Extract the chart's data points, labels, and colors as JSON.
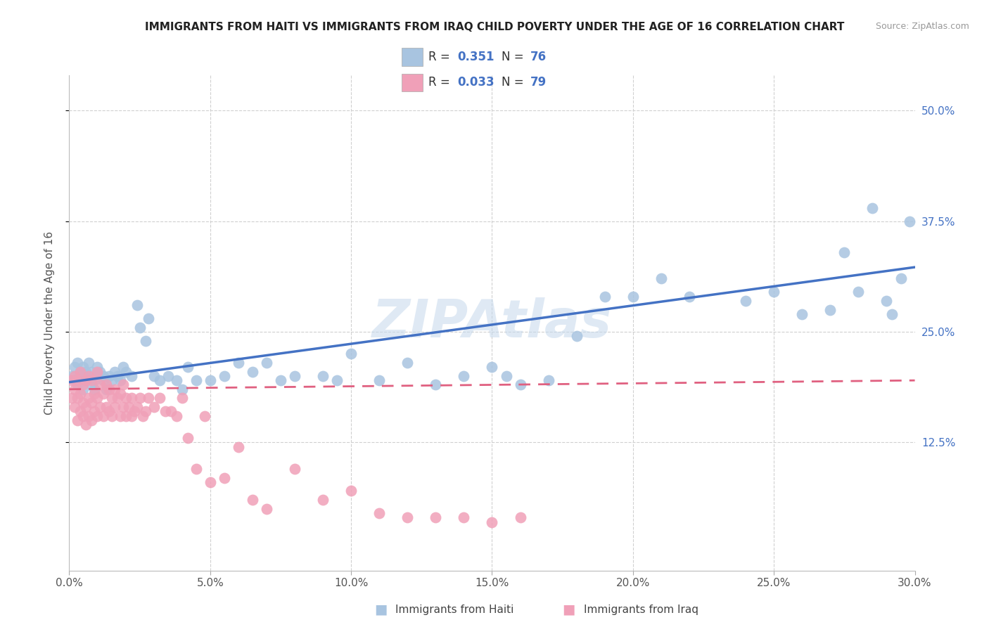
{
  "title": "IMMIGRANTS FROM HAITI VS IMMIGRANTS FROM IRAQ CHILD POVERTY UNDER THE AGE OF 16 CORRELATION CHART",
  "source": "Source: ZipAtlas.com",
  "ylabel": "Child Poverty Under the Age of 16",
  "xlim": [
    0.0,
    0.3
  ],
  "ylim": [
    -0.02,
    0.54
  ],
  "legend1_label": "Immigrants from Haiti",
  "legend2_label": "Immigrants from Iraq",
  "R_haiti": 0.351,
  "N_haiti": 76,
  "R_iraq": 0.033,
  "N_iraq": 79,
  "color_haiti": "#a8c4e0",
  "color_iraq": "#f0a0b8",
  "line_haiti": "#4472c4",
  "line_iraq": "#e06080",
  "watermark": "ZIPAtlas",
  "haiti_x": [
    0.001,
    0.002,
    0.002,
    0.003,
    0.003,
    0.004,
    0.004,
    0.005,
    0.005,
    0.006,
    0.006,
    0.007,
    0.007,
    0.008,
    0.008,
    0.009,
    0.009,
    0.01,
    0.01,
    0.011,
    0.012,
    0.012,
    0.013,
    0.014,
    0.015,
    0.016,
    0.017,
    0.018,
    0.019,
    0.02,
    0.022,
    0.024,
    0.025,
    0.027,
    0.028,
    0.03,
    0.032,
    0.035,
    0.038,
    0.04,
    0.042,
    0.045,
    0.05,
    0.055,
    0.06,
    0.065,
    0.07,
    0.075,
    0.08,
    0.09,
    0.095,
    0.1,
    0.11,
    0.12,
    0.13,
    0.14,
    0.15,
    0.155,
    0.16,
    0.17,
    0.18,
    0.19,
    0.2,
    0.21,
    0.22,
    0.24,
    0.25,
    0.26,
    0.27,
    0.275,
    0.28,
    0.285,
    0.29,
    0.292,
    0.295,
    0.298
  ],
  "haiti_y": [
    0.2,
    0.195,
    0.21,
    0.19,
    0.215,
    0.2,
    0.205,
    0.185,
    0.21,
    0.195,
    0.205,
    0.2,
    0.215,
    0.19,
    0.205,
    0.185,
    0.195,
    0.2,
    0.21,
    0.205,
    0.195,
    0.2,
    0.185,
    0.2,
    0.195,
    0.205,
    0.2,
    0.195,
    0.21,
    0.205,
    0.2,
    0.28,
    0.255,
    0.24,
    0.265,
    0.2,
    0.195,
    0.2,
    0.195,
    0.185,
    0.21,
    0.195,
    0.195,
    0.2,
    0.215,
    0.205,
    0.215,
    0.195,
    0.2,
    0.2,
    0.195,
    0.225,
    0.195,
    0.215,
    0.19,
    0.2,
    0.21,
    0.2,
    0.19,
    0.195,
    0.245,
    0.29,
    0.29,
    0.31,
    0.29,
    0.285,
    0.295,
    0.27,
    0.275,
    0.34,
    0.295,
    0.39,
    0.285,
    0.27,
    0.31,
    0.375
  ],
  "iraq_x": [
    0.001,
    0.001,
    0.002,
    0.002,
    0.002,
    0.003,
    0.003,
    0.003,
    0.004,
    0.004,
    0.004,
    0.005,
    0.005,
    0.005,
    0.006,
    0.006,
    0.006,
    0.007,
    0.007,
    0.007,
    0.008,
    0.008,
    0.008,
    0.009,
    0.009,
    0.01,
    0.01,
    0.01,
    0.011,
    0.011,
    0.012,
    0.012,
    0.013,
    0.013,
    0.014,
    0.014,
    0.015,
    0.015,
    0.016,
    0.016,
    0.017,
    0.018,
    0.018,
    0.019,
    0.019,
    0.02,
    0.02,
    0.021,
    0.022,
    0.022,
    0.023,
    0.024,
    0.025,
    0.026,
    0.027,
    0.028,
    0.03,
    0.032,
    0.034,
    0.036,
    0.038,
    0.04,
    0.042,
    0.045,
    0.048,
    0.05,
    0.055,
    0.06,
    0.065,
    0.07,
    0.08,
    0.09,
    0.1,
    0.11,
    0.12,
    0.13,
    0.14,
    0.15,
    0.16
  ],
  "iraq_y": [
    0.175,
    0.195,
    0.165,
    0.185,
    0.2,
    0.15,
    0.175,
    0.195,
    0.16,
    0.18,
    0.205,
    0.155,
    0.17,
    0.19,
    0.145,
    0.165,
    0.195,
    0.155,
    0.175,
    0.2,
    0.15,
    0.17,
    0.195,
    0.16,
    0.18,
    0.155,
    0.175,
    0.205,
    0.165,
    0.19,
    0.155,
    0.18,
    0.165,
    0.19,
    0.16,
    0.185,
    0.155,
    0.175,
    0.165,
    0.185,
    0.175,
    0.155,
    0.18,
    0.165,
    0.19,
    0.155,
    0.175,
    0.165,
    0.155,
    0.175,
    0.16,
    0.165,
    0.175,
    0.155,
    0.16,
    0.175,
    0.165,
    0.175,
    0.16,
    0.16,
    0.155,
    0.175,
    0.13,
    0.095,
    0.155,
    0.08,
    0.085,
    0.12,
    0.06,
    0.05,
    0.095,
    0.06,
    0.07,
    0.045,
    0.04,
    0.04,
    0.04,
    0.035,
    0.04
  ]
}
